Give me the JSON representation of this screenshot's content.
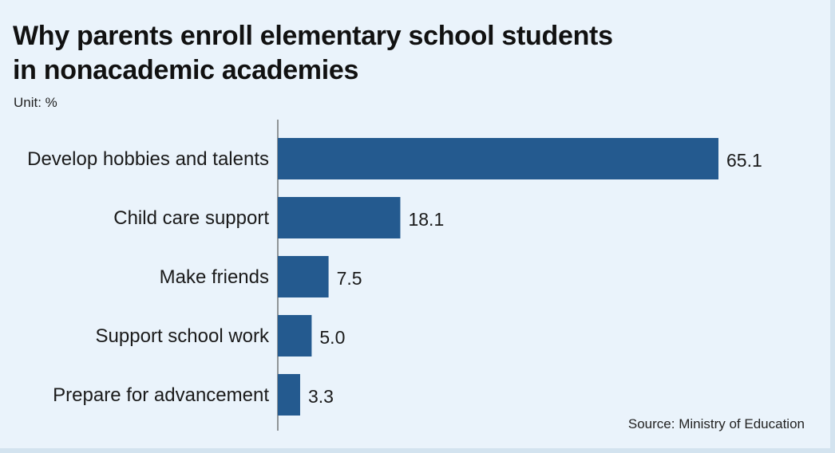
{
  "title_line1": "Why parents enroll elementary school students",
  "title_line2": "in nonacademic academies",
  "unit": "Unit: %",
  "source": "Source: Ministry of Education",
  "colors": {
    "bar": "#245a8f",
    "background": "#eaf3fb",
    "axis": "#555555"
  },
  "chart_data": {
    "type": "bar",
    "orientation": "horizontal",
    "title": "Why parents enroll elementary school students in nonacademic academies",
    "categories": [
      "Develop hobbies and talents",
      "Child care support",
      "Make friends",
      "Support school work",
      "Prepare for advancement"
    ],
    "values": [
      65.1,
      18.1,
      7.5,
      5.0,
      3.3
    ],
    "value_labels": [
      "65.1",
      "18.1",
      "7.5",
      "5.0",
      "3.3"
    ],
    "xlim": [
      0,
      65.1
    ],
    "grid": false,
    "legend": "none"
  }
}
